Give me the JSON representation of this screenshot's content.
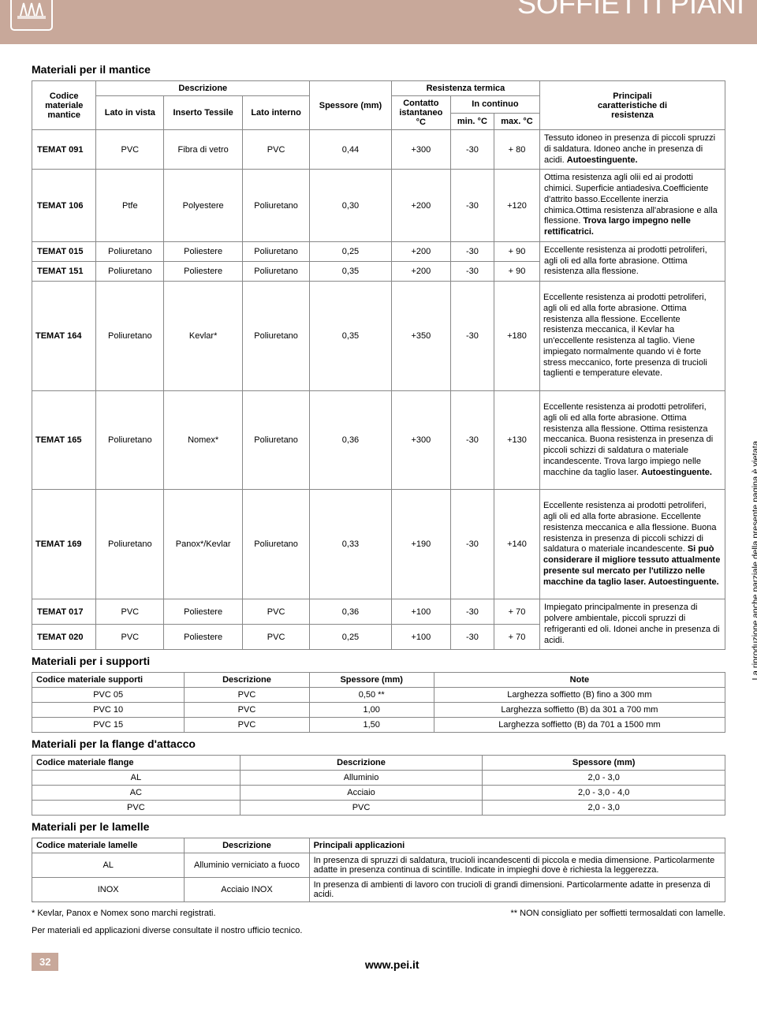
{
  "header": {
    "title": "SOFFIETTI PIANI"
  },
  "mainSection": {
    "title": "Materiali per il mantice",
    "head": {
      "col1_l1": "Codice",
      "col1_l2": "materiale",
      "col1_l3": "mantice",
      "desc": "Descrizione",
      "sub1": "Lato in vista",
      "sub2": "Inserto Tessile",
      "sub3": "Lato interno",
      "thick": "Spessore (mm)",
      "therm": "Resistenza termica",
      "therm_sub1_l1": "Contatto",
      "therm_sub1_l2": "istantaneo",
      "therm_sub1_l3": "°C",
      "therm_sub2": "In continuo",
      "therm_min": "min. °C",
      "therm_max": "max. °C",
      "last_l1": "Principali",
      "last_l2": "caratteristiche di",
      "last_l3": "resistenza"
    },
    "rows": [
      {
        "code": "TEMAT 091",
        "c1": "PVC",
        "c2": "Fibra di vetro",
        "c3": "PVC",
        "t": "0,44",
        "r1": "+300",
        "r2": "-30",
        "r3": "+ 80",
        "d": "Tessuto idoneo in presenza di piccoli spruzzi di saldatura. Idoneo anche in presenza di acidi. <b>Autoestinguente.</b>",
        "tall": false
      },
      {
        "code": "TEMAT 106",
        "c1": "Ptfe",
        "c2": "Polyestere",
        "c3": "Poliuretano",
        "t": "0,30",
        "r1": "+200",
        "r2": "-30",
        "r3": "+120",
        "d": "Ottima resistenza agli olii ed ai prodotti chimici. Superficie antiadesiva.Coefficiente d'attrito basso.Eccellente inerzia chimica.Ottima resistenza all'abrasione e alla flessione. <b>Trova largo impegno nelle rettificatrici.</b>",
        "tall": false
      },
      {
        "code": "TEMAT 015",
        "c1": "Poliuretano",
        "c2": "Poliestere",
        "c3": "Poliuretano",
        "t": "0,25",
        "r1": "+200",
        "r2": "-30",
        "r3": "+ 90",
        "d": "Eccellente resistenza ai prodotti petroliferi, agli oli ed alla forte abrasione. Ottima resistenza alla flessione.",
        "rowspan": 2,
        "tall": false
      },
      {
        "code": "TEMAT 151",
        "c1": "Poliuretano",
        "c2": "Poliestere",
        "c3": "Poliuretano",
        "t": "0,35",
        "r1": "+200",
        "r2": "-30",
        "r3": "+ 90",
        "skip_desc": true,
        "tall": false
      },
      {
        "code": "TEMAT 164",
        "c1": "Poliuretano",
        "c2": "Kevlar*",
        "c3": "Poliuretano",
        "t": "0,35",
        "r1": "+350",
        "r2": "-30",
        "r3": "+180",
        "d": "Eccellente resistenza ai prodotti petroliferi, agli oli ed alla forte abrasione. Ottima resistenza alla flessione. Eccellente resistenza meccanica, il Kevlar ha un'eccellente resistenza al taglio. Viene impiegato normalmente quando vi è forte stress meccanico, forte presenza di trucioli taglienti e temperature elevate.",
        "tall": true
      },
      {
        "code": "TEMAT 165",
        "c1": "Poliuretano",
        "c2": "Nomex*",
        "c3": "Poliuretano",
        "t": "0,36",
        "r1": "+300",
        "r2": "-30",
        "r3": "+130",
        "d": "Eccellente resistenza ai prodotti petroliferi, agli oli ed alla forte abrasione. Ottima resistenza alla flessione. Ottima resistenza meccanica. Buona resistenza in presenza di piccoli schizzi di saldatura o materiale incandescente. Trova largo impiego nelle macchine da taglio laser. <b>Autoestinguente.</b>",
        "tall": true
      },
      {
        "code": "TEMAT 169",
        "c1": "Poliuretano",
        "c2": "Panox*/Kevlar",
        "c3": "Poliuretano",
        "t": "0,33",
        "r1": "+190",
        "r2": "-30",
        "r3": "+140",
        "d": "Eccellente resistenza ai prodotti petroliferi, agli oli ed alla forte abrasione. Eccellente resistenza meccanica e alla flessione. Buona resistenza in presenza di piccoli schizzi di saldatura o materiale incandescente. <b>Si può considerare il migliore tessuto attualmente presente sul mercato per l'utilizzo nelle macchine da taglio laser. Autoestinguente.</b>",
        "tall": true
      },
      {
        "code": "TEMAT 017",
        "c1": "PVC",
        "c2": "Poliestere",
        "c3": "PVC",
        "t": "0,36",
        "r1": "+100",
        "r2": "-30",
        "r3": "+ 70",
        "d": "Impiegato principalmente in presenza di polvere ambientale, piccoli spruzzi di refrigeranti ed oli. Idonei anche in presenza di acidi.",
        "rowspan": 2,
        "tall": false
      },
      {
        "code": "TEMAT 020",
        "c1": "PVC",
        "c2": "Poliestere",
        "c3": "PVC",
        "t": "0,25",
        "r1": "+100",
        "r2": "-30",
        "r3": "+ 70",
        "skip_desc": true,
        "tall": false
      }
    ]
  },
  "supporti": {
    "title": "Materiali per i supporti",
    "head": {
      "c1": "Codice materiale supporti",
      "c2": "Descrizione",
      "c3": "Spessore (mm)",
      "c4": "Note"
    },
    "rows": [
      {
        "c1": "PVC 05",
        "c2": "PVC",
        "c3": "0,50 **",
        "c4": "Larghezza soffietto (B) fino a 300 mm"
      },
      {
        "c1": "PVC 10",
        "c2": "PVC",
        "c3": "1,00",
        "c4": "Larghezza soffietto (B) da 301 a 700 mm"
      },
      {
        "c1": "PVC 15",
        "c2": "PVC",
        "c3": "1,50",
        "c4": "Larghezza soffietto (B) da 701 a 1500 mm"
      }
    ]
  },
  "flange": {
    "title": "Materiali per la flange d'attacco",
    "head": {
      "c1": "Codice materiale flange",
      "c2": "Descrizione",
      "c3": "Spessore (mm)"
    },
    "rows": [
      {
        "c1": "AL",
        "c2": "Alluminio",
        "c3": "2,0 - 3,0"
      },
      {
        "c1": "AC",
        "c2": "Acciaio",
        "c3": "2,0 - 3,0 - 4,0"
      },
      {
        "c1": "PVC",
        "c2": "PVC",
        "c3": "2,0 - 3,0"
      }
    ]
  },
  "lamelle": {
    "title": "Materiali per le lamelle",
    "head": {
      "c1": "Codice materiale lamelle",
      "c2": "Descrizione",
      "c3": "Principali applicazioni"
    },
    "rows": [
      {
        "c1": "AL",
        "c2": "Alluminio verniciato a fuoco",
        "c3": "In presenza di spruzzi di saldatura, trucioli incandescenti di piccola e media dimensione. Particolarmente adatte in presenza continua di scintille. Indicate in impieghi dove è richiesta la leggerezza."
      },
      {
        "c1": "INOX",
        "c2": "Acciaio INOX",
        "c3": "In presenza di ambienti di lavoro con trucioli di grandi dimensioni. Particolarmente adatte in presenza di acidi."
      }
    ]
  },
  "verticalNote": "La riproduzione anche parziale della presente pagina è vietata.",
  "foot1": "* Kevlar, Panox e Nomex sono marchi registrati.",
  "foot2": "** NON consigliato per soffietti termosaldati con lamelle.",
  "contact": "Per materiali ed applicazioni diverse consultate il nostro ufficio tecnico.",
  "pageNum": "32",
  "url": "www.pei.it"
}
